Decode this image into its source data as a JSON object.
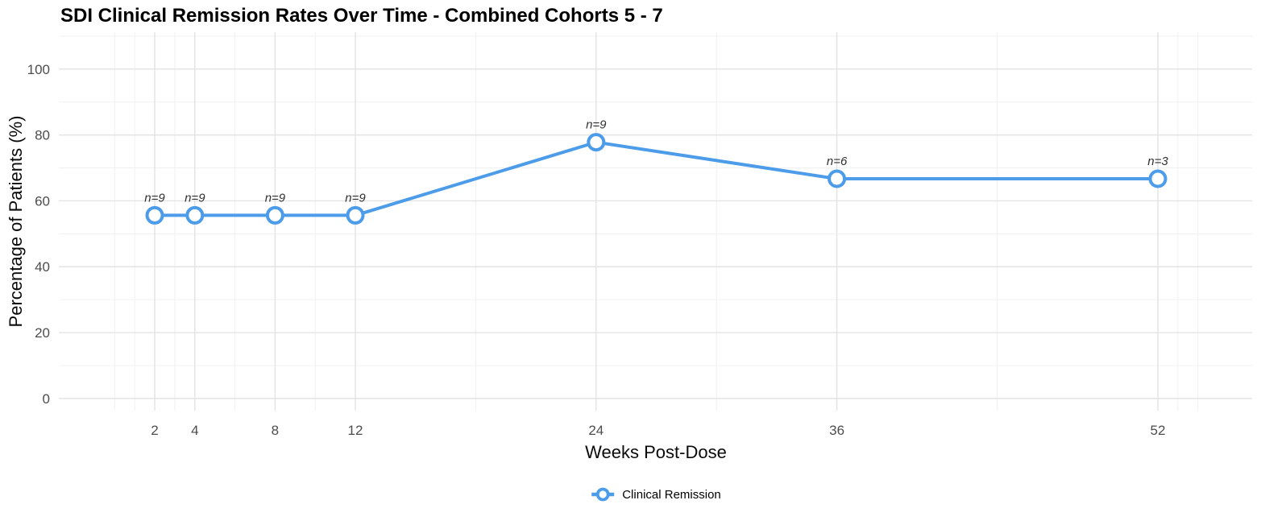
{
  "chart_data": {
    "type": "line",
    "title": "SDI Clinical Remission Rates Over Time - Combined Cohorts 5 - 7",
    "xlabel": "Weeks Post-Dose",
    "ylabel": "Percentage of Patients (%)",
    "x": [
      2,
      4,
      8,
      12,
      24,
      36,
      52
    ],
    "series": [
      {
        "name": "Clinical Remission",
        "color": "#4C9CE9",
        "values": [
          55.6,
          55.6,
          55.6,
          55.6,
          77.8,
          66.7,
          66.7
        ],
        "point_labels": [
          "n=9",
          "n=9",
          "n=9",
          "n=9",
          "n=9",
          "n=6",
          "n=3"
        ]
      }
    ],
    "x_major_ticks": [
      2,
      4,
      8,
      12,
      24,
      36,
      52
    ],
    "x_tick_labels": [
      "2",
      "4",
      "8",
      "12",
      "24",
      "36",
      "52"
    ],
    "x_minor_ticks": [
      0,
      1,
      3,
      6,
      10,
      18,
      30,
      44,
      53,
      54
    ],
    "y_major_ticks": [
      0,
      20,
      40,
      60,
      80,
      100
    ],
    "y_tick_labels": [
      "0",
      "20",
      "40",
      "60",
      "80",
      "100"
    ],
    "y_minor_ticks": [
      10,
      30,
      50,
      70,
      90,
      110
    ],
    "xlim": [
      -2.7,
      56.7
    ],
    "ylim": [
      -3.7,
      111.2
    ],
    "grid": true,
    "legend_position": "bottom",
    "colors": {
      "line": "#4C9CE9",
      "marker_fill": "#ffffff",
      "grid_major": "#e3e3e3",
      "grid_minor": "#f0f0f0",
      "tick_label": "#4d4d4d",
      "point_label": "#303030",
      "title": "#000000",
      "background": "#ffffff"
    }
  }
}
